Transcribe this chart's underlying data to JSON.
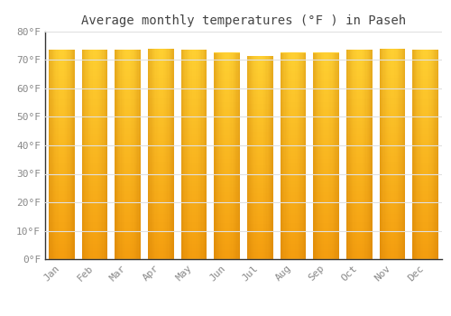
{
  "title": "Average monthly temperatures (°F ) in Paseh",
  "months": [
    "Jan",
    "Feb",
    "Mar",
    "Apr",
    "May",
    "Jun",
    "Jul",
    "Aug",
    "Sep",
    "Oct",
    "Nov",
    "Dec"
  ],
  "values": [
    73.5,
    73.5,
    73.5,
    74.0,
    73.5,
    72.5,
    71.5,
    72.5,
    72.5,
    73.5,
    74.0,
    73.5
  ],
  "bar_color_center": "#FFCC44",
  "bar_color_edge": "#F5A800",
  "background_color": "#FFFFFF",
  "grid_color": "#E0E0E0",
  "title_color": "#444444",
  "tick_color": "#888888",
  "ylim": [
    0,
    80
  ],
  "yticks": [
    0,
    10,
    20,
    30,
    40,
    50,
    60,
    70,
    80
  ],
  "title_fontsize": 10,
  "tick_fontsize": 8
}
